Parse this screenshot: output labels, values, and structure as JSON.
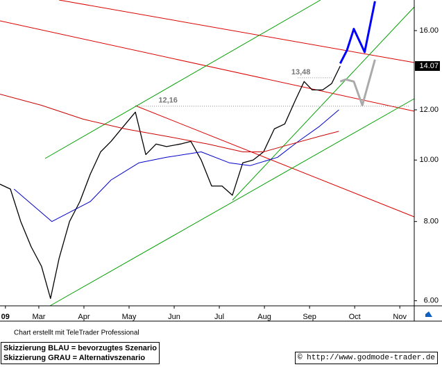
{
  "chart_data": {
    "type": "line",
    "log_y": true,
    "xlim": [
      2.14,
      11.32
    ],
    "ylim": [
      5.89,
      17.88
    ],
    "xticks": [
      {
        "value": 2.26,
        "label": "09"
      },
      {
        "value": 3,
        "label": "Mar"
      },
      {
        "value": 4,
        "label": "Apr"
      },
      {
        "value": 5,
        "label": "May"
      },
      {
        "value": 6,
        "label": "Jun"
      },
      {
        "value": 7,
        "label": "Jul"
      },
      {
        "value": 8,
        "label": "Aug"
      },
      {
        "value": 9,
        "label": "Sep"
      },
      {
        "value": 10,
        "label": "Oct"
      },
      {
        "value": 11,
        "label": "Nov"
      }
    ],
    "yticks": [
      {
        "value": 6,
        "label": "6.00"
      },
      {
        "value": 8,
        "label": "8.00"
      },
      {
        "value": 10,
        "label": "10.00"
      },
      {
        "value": 12,
        "label": "12.00"
      },
      {
        "value": 16,
        "label": "16.00"
      }
    ],
    "series": [
      {
        "color": "#000000",
        "width": 1.3,
        "x": [
          2.14,
          2.37,
          2.6,
          2.83,
          3.06,
          3.26,
          3.45,
          3.68,
          3.91,
          4.14,
          4.37,
          4.6,
          4.83,
          5.14,
          5.37,
          5.6,
          5.83,
          6.14,
          6.37,
          6.6,
          6.83,
          7.06,
          7.29,
          7.52,
          7.75,
          7.98,
          8.22,
          8.45,
          8.68,
          8.88,
          9.06,
          9.29,
          9.49,
          9.68
        ],
        "values": [
          9.16,
          9.0,
          8.0,
          7.3,
          6.8,
          6.05,
          7.0,
          8.0,
          8.6,
          9.5,
          10.3,
          10.7,
          11.2,
          11.9,
          10.2,
          10.6,
          10.5,
          10.6,
          10.7,
          10.0,
          9.1,
          9.1,
          8.8,
          9.9,
          10.0,
          10.3,
          11.2,
          11.4,
          12.4,
          13.3,
          12.9,
          12.9,
          13.2,
          14.07
        ]
      },
      {
        "color": "#0000cc",
        "width": 1,
        "x": [
          2.45,
          3.29,
          4.14,
          4.6,
          5.22,
          5.83,
          6.6,
          7.22,
          7.68,
          8.29,
          8.75,
          9.22,
          9.65
        ],
        "values": [
          9.0,
          8.0,
          8.6,
          9.3,
          9.9,
          10.1,
          10.3,
          9.9,
          9.8,
          10.1,
          10.7,
          11.3,
          12.0
        ]
      },
      {
        "color": "#cc0000",
        "width": 1,
        "x": [
          2.14,
          3.06,
          3.98,
          4.91,
          5.83,
          6.75,
          7.52,
          7.98,
          8.6,
          9.22,
          9.65
        ],
        "values": [
          12.7,
          12.2,
          11.6,
          11.2,
          10.9,
          10.6,
          10.3,
          10.3,
          10.6,
          10.9,
          11.1
        ]
      },
      {
        "color": "#aaaaaa",
        "width": 3,
        "x": [
          9.68,
          9.8,
          9.98,
          10.17,
          10.45
        ],
        "values": [
          13.3,
          13.4,
          13.3,
          12.2,
          14.4
        ]
      },
      {
        "color": "#0000ff",
        "width": 3,
        "x": [
          9.68,
          9.83,
          9.98,
          10.22,
          10.45
        ],
        "values": [
          14.2,
          14.9,
          16.1,
          14.8,
          17.8
        ]
      }
    ],
    "levels": [
      {
        "value": 12.16,
        "label": "12,16",
        "from": 5.14,
        "to": 11.2
      },
      {
        "value": 13.48,
        "label": "13,48",
        "from": 8.74,
        "to": 9.49
      }
    ],
    "last_price": {
      "value": 14.07,
      "label": "14.07"
    },
    "credit": "Chart erstellt mit TeleTrader Professional"
  },
  "footer": {
    "legend": [
      "Skizzierung BLAU = bevorzugtes Szenario",
      "Skizzierung GRAU = Alternativszenario"
    ],
    "source": "© http://www.godmode-trader.de"
  }
}
